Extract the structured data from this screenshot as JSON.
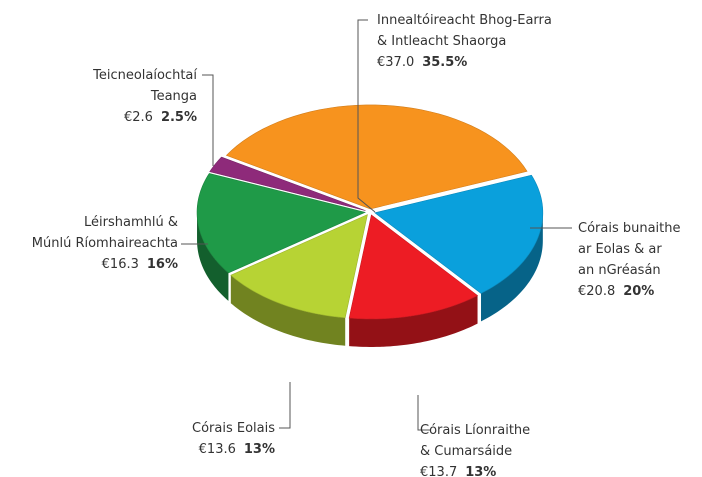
{
  "chart_data": {
    "type": "pie3d",
    "labels": [
      [
        "Innealtóireacht Bhog-Earra",
        "& Intleacht Shaorga"
      ],
      [
        "Córais bunaithe",
        "ar Eolas & ar",
        "an nGréasán"
      ],
      [
        "Córais Líonraithe",
        "& Cumarsáide"
      ],
      [
        "Córais Eolais"
      ],
      [
        "Léirshamhlú &",
        "Múnlú Ríomhaireachta"
      ],
      [
        "Teicneolaíochtaí",
        "Teanga"
      ]
    ],
    "values": [
      35.5,
      20,
      13,
      13,
      16,
      2.5
    ],
    "value_labels": [
      "35.5%",
      "20%",
      "13%",
      "13%",
      "16%",
      "2.5%"
    ],
    "amounts": [
      37.0,
      20.8,
      13.7,
      13.6,
      16.3,
      2.6
    ],
    "amount_labels": [
      "€37.0",
      "€20.8",
      "€13.7",
      "€13.6",
      "€16.3",
      "€2.6"
    ],
    "colors": [
      "#f7931e",
      "#0aa0dc",
      "#ed1c24",
      "#b7d334",
      "#1f9a48",
      "#8e2a7a"
    ]
  }
}
